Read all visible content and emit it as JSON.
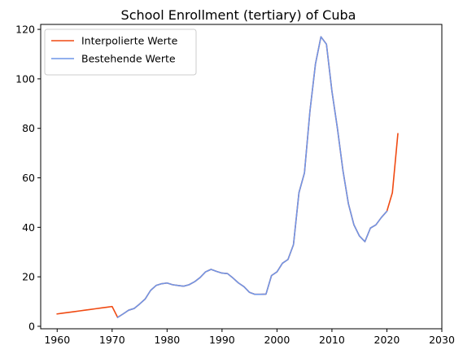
{
  "chart_data": {
    "type": "line",
    "title": "School Enrollment (tertiary) of Cuba",
    "xlabel": "",
    "ylabel": "",
    "xlim": [
      1957,
      2030
    ],
    "ylim": [
      -1,
      122
    ],
    "xticks": [
      1960,
      1970,
      1980,
      1990,
      2000,
      2010,
      2020,
      2030
    ],
    "yticks": [
      0,
      20,
      40,
      60,
      80,
      100,
      120
    ],
    "grid": false,
    "legend_position": "top-left",
    "series": [
      {
        "name": "Interpolierte Werte",
        "color": "#f04a12",
        "x": [
          1960,
          1961,
          1962,
          1963,
          1964,
          1965,
          1966,
          1967,
          1968,
          1969,
          1970,
          1971,
          1972,
          1973,
          1974,
          1975,
          1976,
          1977,
          1978,
          1979,
          1980,
          1981,
          1982,
          1983,
          1984,
          1985,
          1986,
          1987,
          1988,
          1989,
          1990,
          1991,
          1992,
          1993,
          1994,
          1995,
          1996,
          1997,
          1998,
          1999,
          2000,
          2001,
          2002,
          2003,
          2004,
          2005,
          2006,
          2007,
          2008,
          2009,
          2010,
          2011,
          2012,
          2013,
          2014,
          2015,
          2016,
          2017,
          2018,
          2019,
          2020,
          2021,
          2022
        ],
        "y": [
          5.0,
          5.3,
          5.6,
          5.9,
          6.2,
          6.5,
          6.8,
          7.1,
          7.4,
          7.7,
          8.0,
          3.6,
          5.0,
          6.5,
          7.2,
          9.0,
          11.0,
          14.5,
          16.5,
          17.2,
          17.5,
          16.8,
          16.5,
          16.2,
          16.8,
          18.0,
          19.7,
          22.0,
          23.0,
          22.2,
          21.5,
          21.3,
          19.5,
          17.5,
          16.0,
          13.7,
          12.9,
          12.9,
          13.0,
          20.5,
          22.0,
          25.5,
          27.0,
          33.0,
          54.0,
          62.0,
          87.0,
          106.0,
          117.0,
          114.0,
          95.0,
          80.0,
          63.0,
          49.5,
          41.0,
          36.5,
          34.2,
          39.7,
          41.0,
          44.0,
          46.5,
          54.0,
          77.8
        ]
      },
      {
        "name": "Bestehende Werte",
        "color": "#6f96e8",
        "x": [
          1971,
          1972,
          1973,
          1974,
          1975,
          1976,
          1977,
          1978,
          1979,
          1980,
          1981,
          1982,
          1983,
          1984,
          1985,
          1986,
          1987,
          1988,
          1989,
          1990,
          1991,
          1992,
          1993,
          1994,
          1995,
          1996,
          1997,
          1998,
          1999,
          2000,
          2001,
          2002,
          2003,
          2004,
          2005,
          2006,
          2007,
          2008,
          2009,
          2010,
          2011,
          2012,
          2013,
          2014,
          2015,
          2016,
          2017,
          2018,
          2019,
          2020
        ],
        "y": [
          3.6,
          5.0,
          6.5,
          7.2,
          9.0,
          11.0,
          14.5,
          16.5,
          17.2,
          17.5,
          16.8,
          16.5,
          16.2,
          16.8,
          18.0,
          19.7,
          22.0,
          23.0,
          22.2,
          21.5,
          21.3,
          19.5,
          17.5,
          16.0,
          13.7,
          12.9,
          12.9,
          13.0,
          20.5,
          22.0,
          25.5,
          27.0,
          33.0,
          54.0,
          62.0,
          87.0,
          106.0,
          117.0,
          114.0,
          95.0,
          80.0,
          63.0,
          49.5,
          41.0,
          36.5,
          34.2,
          39.7,
          41.0,
          44.0,
          46.5
        ]
      }
    ]
  }
}
